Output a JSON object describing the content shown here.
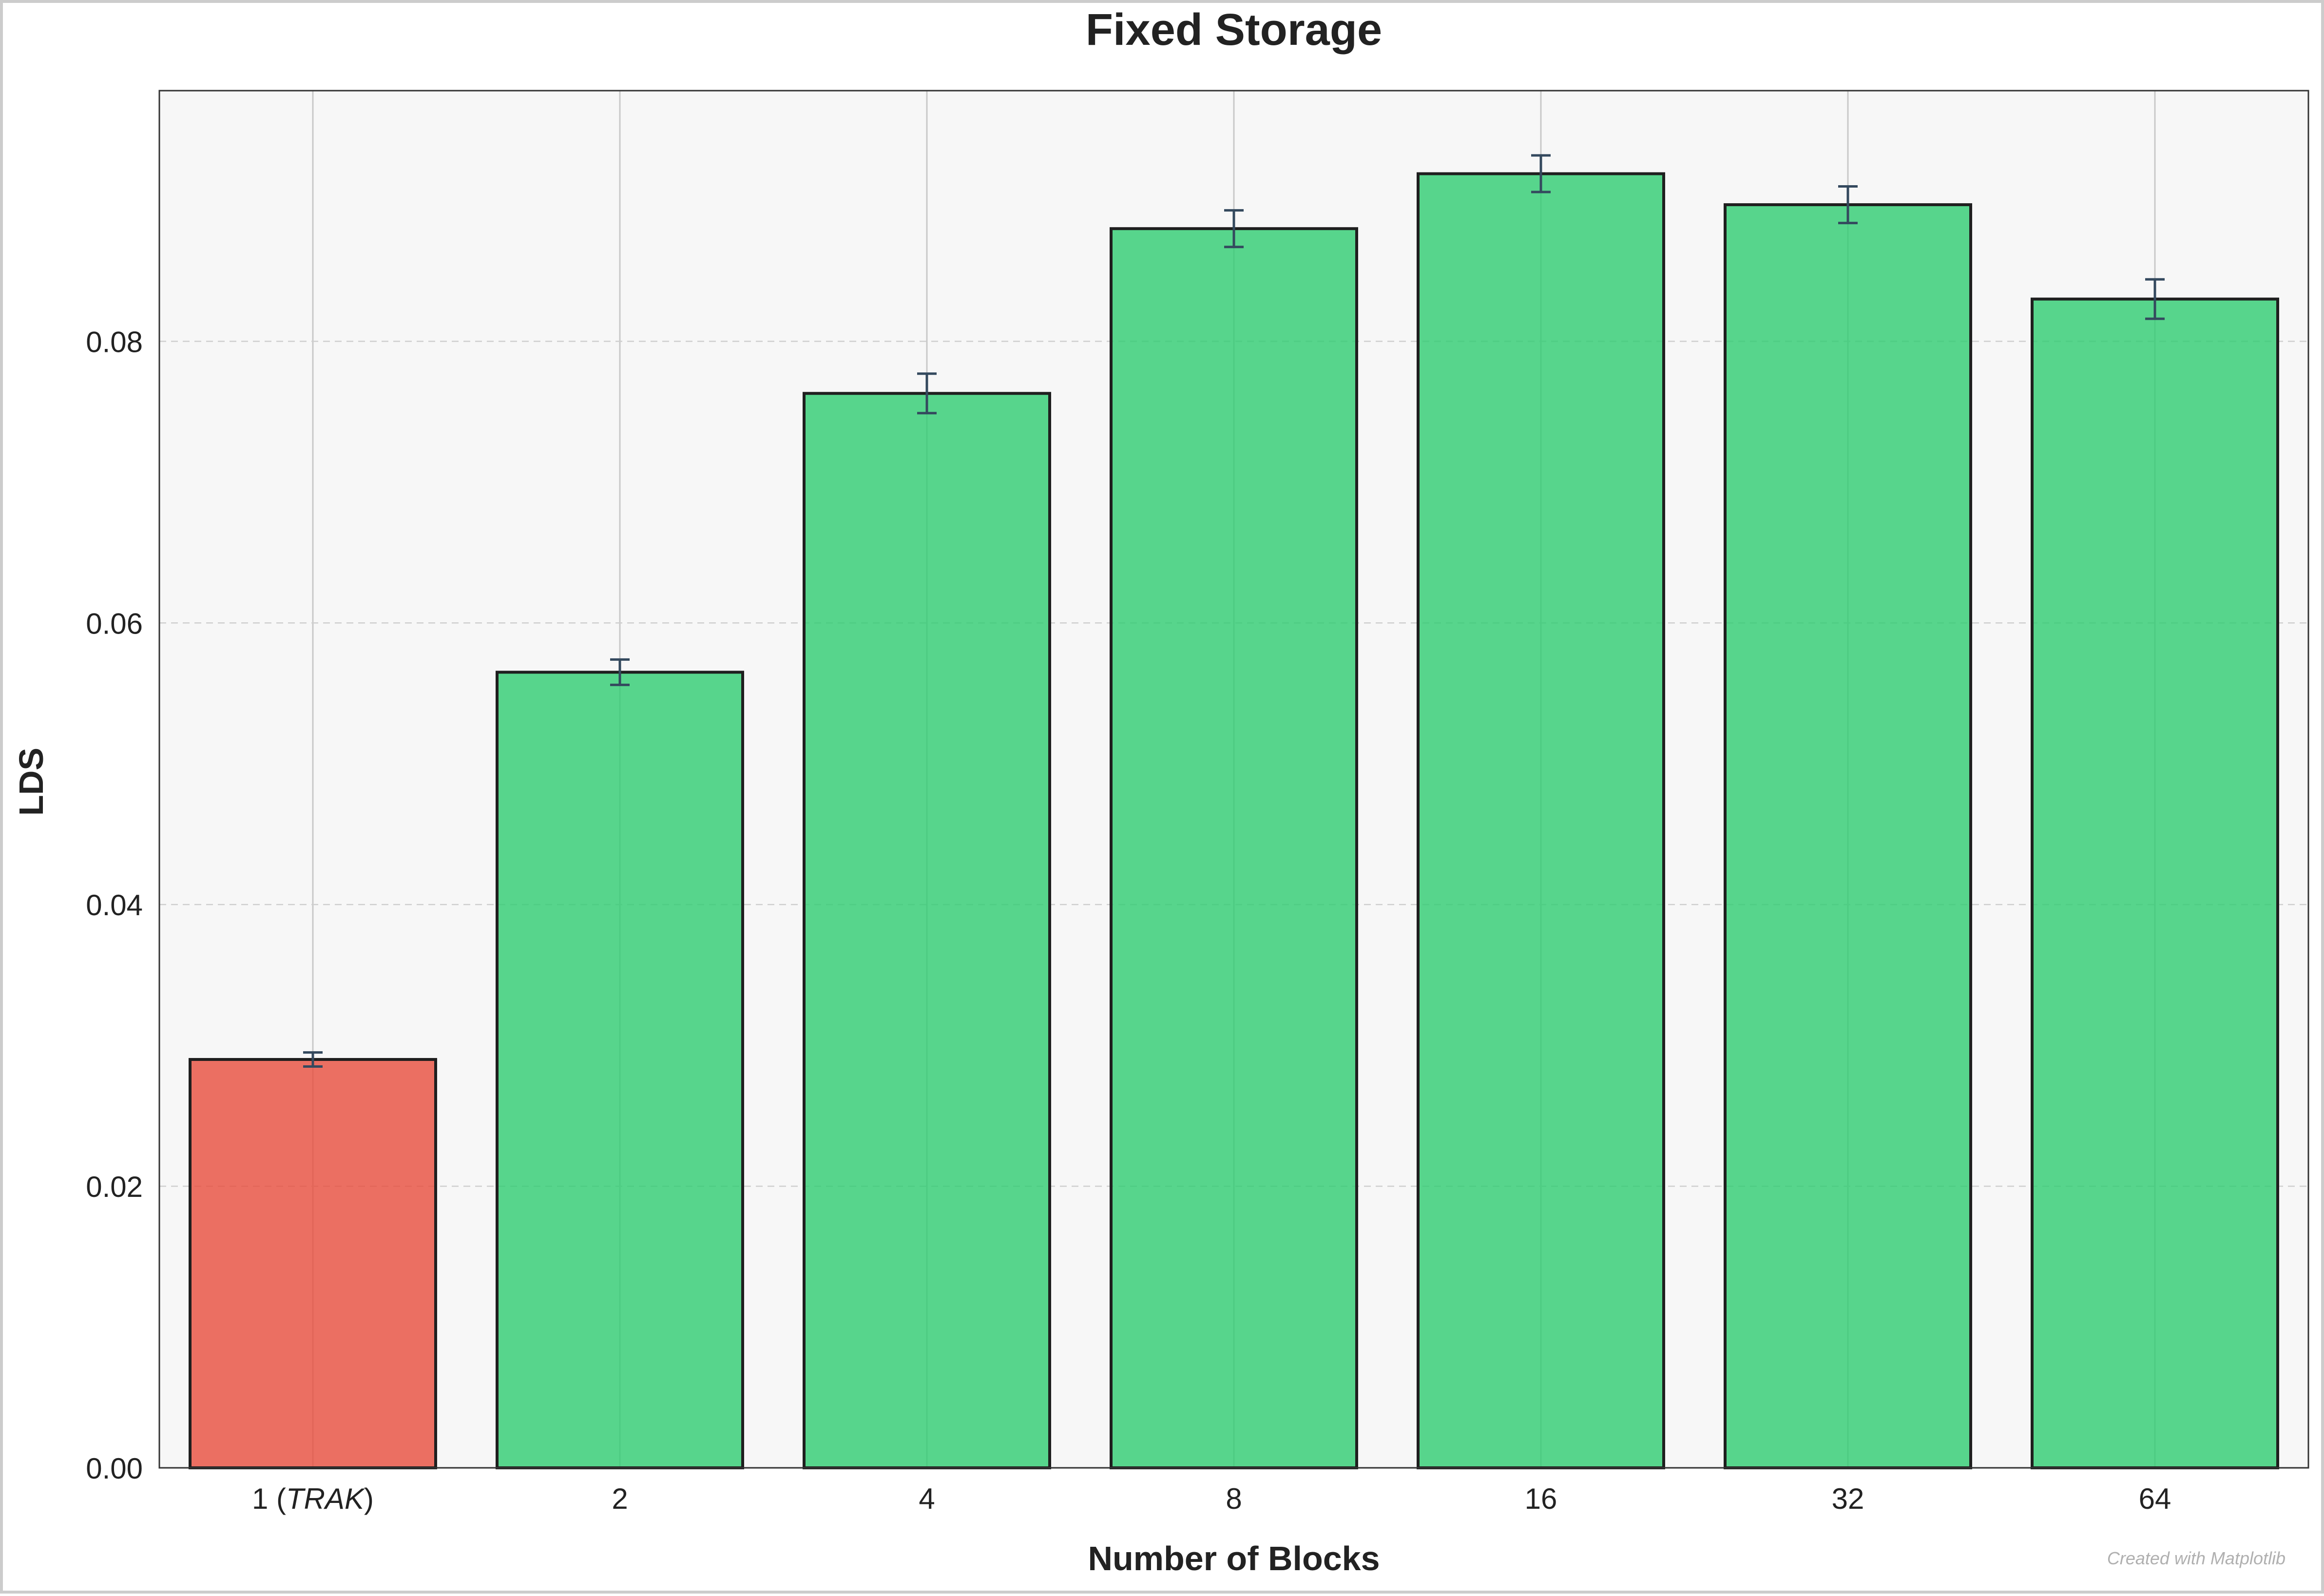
{
  "chart_data": {
    "type": "bar",
    "title": "Fixed Storage",
    "xlabel": "Number of Blocks",
    "ylabel": "LDS",
    "categories": [
      {
        "prefix": "1 (",
        "italic": "TRAK",
        "suffix": ")"
      },
      {
        "prefix": "2",
        "italic": "",
        "suffix": ""
      },
      {
        "prefix": "4",
        "italic": "",
        "suffix": ""
      },
      {
        "prefix": "8",
        "italic": "",
        "suffix": ""
      },
      {
        "prefix": "16",
        "italic": "",
        "suffix": ""
      },
      {
        "prefix": "32",
        "italic": "",
        "suffix": ""
      },
      {
        "prefix": "64",
        "italic": "",
        "suffix": ""
      }
    ],
    "values": [
      0.029,
      0.0565,
      0.0763,
      0.088,
      0.0919,
      0.0897,
      0.083
    ],
    "errors": [
      0.0005,
      0.0009,
      0.0014,
      0.0013,
      0.0013,
      0.0013,
      0.0014
    ],
    "bar_colors": [
      "#e74c3c",
      "#2ecc71",
      "#2ecc71",
      "#2ecc71",
      "#2ecc71",
      "#2ecc71",
      "#2ecc71"
    ],
    "ylim": [
      0,
      0.0978
    ],
    "yticks": [
      "0.00",
      "0.02",
      "0.04",
      "0.06",
      "0.08"
    ],
    "ytick_values": [
      0,
      0.02,
      0.04,
      0.06,
      0.08
    ],
    "grid": true,
    "watermark": "Created with Matplotlib"
  },
  "colors": {
    "background": "#ffffff",
    "plot_background": "#f7f7f7",
    "bar_edge": "#1f1f1f",
    "error_bar": "#34495e",
    "text": "#222222",
    "grid": "#cfcfcf",
    "vgrid": "#c8c8c8",
    "watermark": "#b0b0b0"
  }
}
